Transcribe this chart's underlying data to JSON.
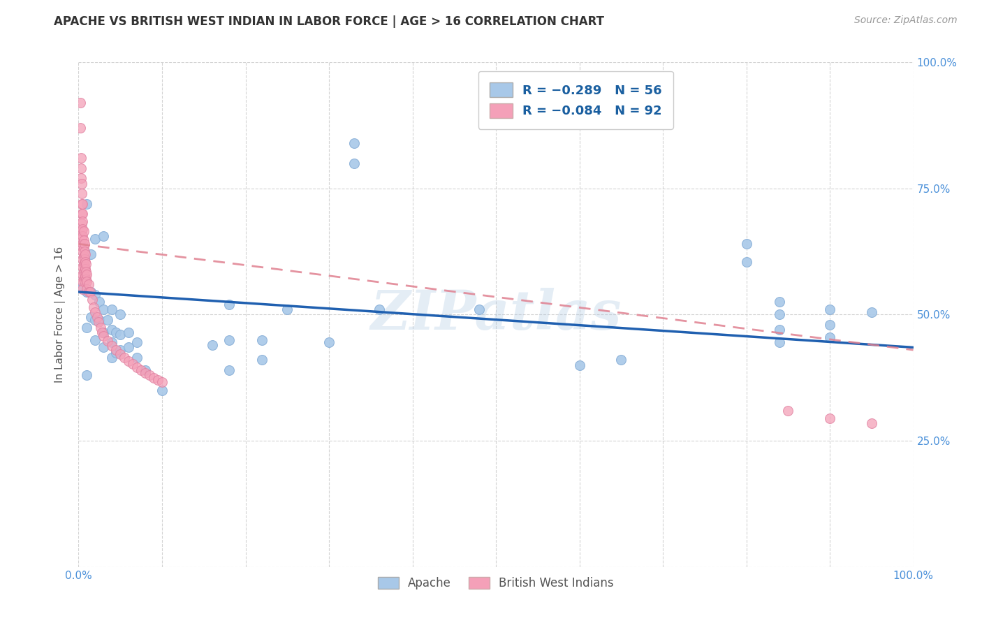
{
  "title": "APACHE VS BRITISH WEST INDIAN IN LABOR FORCE | AGE > 16 CORRELATION CHART",
  "source": "Source: ZipAtlas.com",
  "ylabel": "In Labor Force | Age > 16",
  "xlim": [
    0.0,
    1.0
  ],
  "ylim": [
    0.0,
    1.0
  ],
  "xticks": [
    0.0,
    0.1,
    0.2,
    0.3,
    0.4,
    0.5,
    0.6,
    0.7,
    0.8,
    0.9,
    1.0
  ],
  "xticklabels": [
    "0.0%",
    "",
    "",
    "",
    "",
    "",
    "",
    "",
    "",
    "",
    "100.0%"
  ],
  "yticks": [
    0.0,
    0.25,
    0.5,
    0.75,
    1.0
  ],
  "right_yticklabels": [
    "",
    "25.0%",
    "50.0%",
    "75.0%",
    "100.0%"
  ],
  "watermark": "ZIPatlas",
  "apache_color": "#a8c8e8",
  "bwi_color": "#f4a0b8",
  "apache_line_color": "#2060b0",
  "bwi_line_color": "#e08090",
  "grid_color": "#c8c8c8",
  "title_color": "#333333",
  "axis_label_color": "#555555",
  "tick_color": "#4a90d9",
  "apache_scatter": [
    [
      0.005,
      0.555
    ],
    [
      0.01,
      0.72
    ],
    [
      0.01,
      0.545
    ],
    [
      0.01,
      0.475
    ],
    [
      0.01,
      0.38
    ],
    [
      0.015,
      0.62
    ],
    [
      0.015,
      0.545
    ],
    [
      0.015,
      0.495
    ],
    [
      0.02,
      0.65
    ],
    [
      0.02,
      0.54
    ],
    [
      0.02,
      0.49
    ],
    [
      0.02,
      0.45
    ],
    [
      0.025,
      0.525
    ],
    [
      0.025,
      0.49
    ],
    [
      0.03,
      0.655
    ],
    [
      0.03,
      0.51
    ],
    [
      0.03,
      0.465
    ],
    [
      0.03,
      0.435
    ],
    [
      0.035,
      0.49
    ],
    [
      0.04,
      0.51
    ],
    [
      0.04,
      0.47
    ],
    [
      0.04,
      0.445
    ],
    [
      0.04,
      0.415
    ],
    [
      0.045,
      0.465
    ],
    [
      0.045,
      0.425
    ],
    [
      0.05,
      0.5
    ],
    [
      0.05,
      0.46
    ],
    [
      0.05,
      0.43
    ],
    [
      0.06,
      0.465
    ],
    [
      0.06,
      0.435
    ],
    [
      0.07,
      0.445
    ],
    [
      0.07,
      0.415
    ],
    [
      0.08,
      0.39
    ],
    [
      0.1,
      0.35
    ],
    [
      0.16,
      0.44
    ],
    [
      0.18,
      0.52
    ],
    [
      0.18,
      0.45
    ],
    [
      0.18,
      0.39
    ],
    [
      0.22,
      0.45
    ],
    [
      0.22,
      0.41
    ],
    [
      0.25,
      0.51
    ],
    [
      0.3,
      0.445
    ],
    [
      0.33,
      0.84
    ],
    [
      0.33,
      0.8
    ],
    [
      0.36,
      0.51
    ],
    [
      0.48,
      0.51
    ],
    [
      0.6,
      0.4
    ],
    [
      0.65,
      0.41
    ],
    [
      0.8,
      0.64
    ],
    [
      0.8,
      0.605
    ],
    [
      0.84,
      0.525
    ],
    [
      0.84,
      0.5
    ],
    [
      0.84,
      0.47
    ],
    [
      0.84,
      0.445
    ],
    [
      0.9,
      0.51
    ],
    [
      0.9,
      0.48
    ],
    [
      0.9,
      0.455
    ],
    [
      0.95,
      0.505
    ]
  ],
  "bwi_scatter": [
    [
      0.002,
      0.92
    ],
    [
      0.002,
      0.87
    ],
    [
      0.003,
      0.81
    ],
    [
      0.003,
      0.79
    ],
    [
      0.003,
      0.77
    ],
    [
      0.004,
      0.76
    ],
    [
      0.004,
      0.74
    ],
    [
      0.004,
      0.72
    ],
    [
      0.004,
      0.7
    ],
    [
      0.004,
      0.68
    ],
    [
      0.004,
      0.665
    ],
    [
      0.004,
      0.65
    ],
    [
      0.004,
      0.635
    ],
    [
      0.005,
      0.72
    ],
    [
      0.005,
      0.7
    ],
    [
      0.005,
      0.685
    ],
    [
      0.005,
      0.67
    ],
    [
      0.005,
      0.655
    ],
    [
      0.005,
      0.64
    ],
    [
      0.005,
      0.625
    ],
    [
      0.005,
      0.61
    ],
    [
      0.005,
      0.595
    ],
    [
      0.005,
      0.58
    ],
    [
      0.005,
      0.565
    ],
    [
      0.005,
      0.55
    ],
    [
      0.006,
      0.665
    ],
    [
      0.006,
      0.648
    ],
    [
      0.006,
      0.632
    ],
    [
      0.006,
      0.616
    ],
    [
      0.006,
      0.6
    ],
    [
      0.006,
      0.585
    ],
    [
      0.006,
      0.57
    ],
    [
      0.007,
      0.64
    ],
    [
      0.007,
      0.625
    ],
    [
      0.007,
      0.61
    ],
    [
      0.007,
      0.595
    ],
    [
      0.007,
      0.58
    ],
    [
      0.007,
      0.565
    ],
    [
      0.008,
      0.62
    ],
    [
      0.008,
      0.605
    ],
    [
      0.008,
      0.59
    ],
    [
      0.008,
      0.575
    ],
    [
      0.009,
      0.6
    ],
    [
      0.009,
      0.585
    ],
    [
      0.009,
      0.57
    ],
    [
      0.01,
      0.58
    ],
    [
      0.01,
      0.565
    ],
    [
      0.01,
      0.55
    ],
    [
      0.012,
      0.56
    ],
    [
      0.012,
      0.545
    ],
    [
      0.014,
      0.545
    ],
    [
      0.016,
      0.53
    ],
    [
      0.018,
      0.515
    ],
    [
      0.02,
      0.505
    ],
    [
      0.022,
      0.495
    ],
    [
      0.024,
      0.485
    ],
    [
      0.026,
      0.475
    ],
    [
      0.028,
      0.465
    ],
    [
      0.03,
      0.458
    ],
    [
      0.035,
      0.448
    ],
    [
      0.04,
      0.438
    ],
    [
      0.045,
      0.43
    ],
    [
      0.05,
      0.422
    ],
    [
      0.055,
      0.415
    ],
    [
      0.06,
      0.408
    ],
    [
      0.065,
      0.402
    ],
    [
      0.07,
      0.396
    ],
    [
      0.075,
      0.39
    ],
    [
      0.08,
      0.385
    ],
    [
      0.085,
      0.38
    ],
    [
      0.09,
      0.375
    ],
    [
      0.095,
      0.37
    ],
    [
      0.1,
      0.366
    ],
    [
      0.85,
      0.31
    ],
    [
      0.9,
      0.295
    ],
    [
      0.95,
      0.285
    ]
  ],
  "apache_line_x0": 0.0,
  "apache_line_y0": 0.545,
  "apache_line_x1": 1.0,
  "apache_line_y1": 0.435,
  "bwi_line_x0": 0.0,
  "bwi_line_y0": 0.64,
  "bwi_line_x1": 1.0,
  "bwi_line_y1": 0.43
}
